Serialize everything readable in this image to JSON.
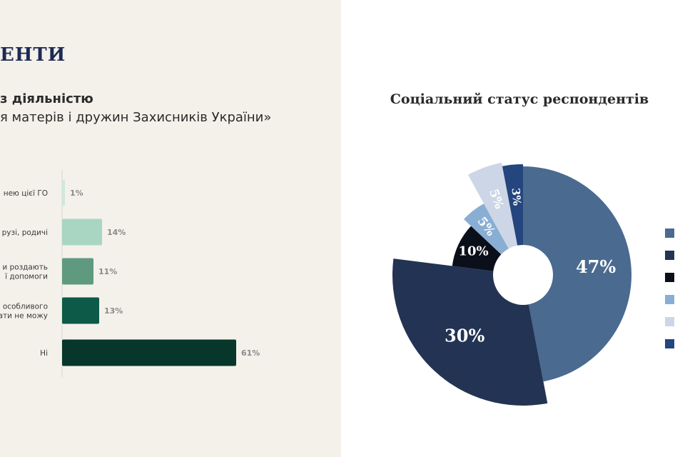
{
  "slide": {
    "title": "ЕНТИ"
  },
  "bar_chart": {
    "title_line1": "з діяльністю",
    "title_line2": "я матерів і дружин Захисників України»"
  },
  "pie_chart_title": "Соціальний статус респондентів",
  "chart_data": [
    {
      "type": "bar",
      "orientation": "horizontal",
      "title": "з діяльністю я матерів і дружин Захисників України»",
      "categories": [
        [
          "нею цієї ГО"
        ],
        [
          "рузі, родичі"
        ],
        [
          "и роздають",
          "ї допомоги"
        ],
        [
          "особливого",
          "ати не можу"
        ],
        [
          "Ні"
        ]
      ],
      "values": [
        1,
        14,
        11,
        13,
        61
      ],
      "value_labels": [
        "1%",
        "14%",
        "11%",
        "13%",
        "61%"
      ],
      "colors": [
        "#cfe9dc",
        "#a9d6c2",
        "#5f9a7e",
        "#0d5a48",
        "#06372a"
      ],
      "xlim": [
        0,
        70
      ],
      "grid": false
    },
    {
      "type": "pie",
      "title": "Соціальний статус респондентів",
      "values": [
        47,
        30,
        10,
        5,
        5,
        3
      ],
      "labels": [
        "47%",
        "30%",
        "10%",
        "5%",
        "5%",
        "3%"
      ],
      "colors": [
        "#4a6a90",
        "#233353",
        "#0a0f1a",
        "#89aed3",
        "#cdd6e6",
        "#24457e"
      ],
      "legend_position": "right",
      "donut_hole": true,
      "exploded": true
    }
  ]
}
